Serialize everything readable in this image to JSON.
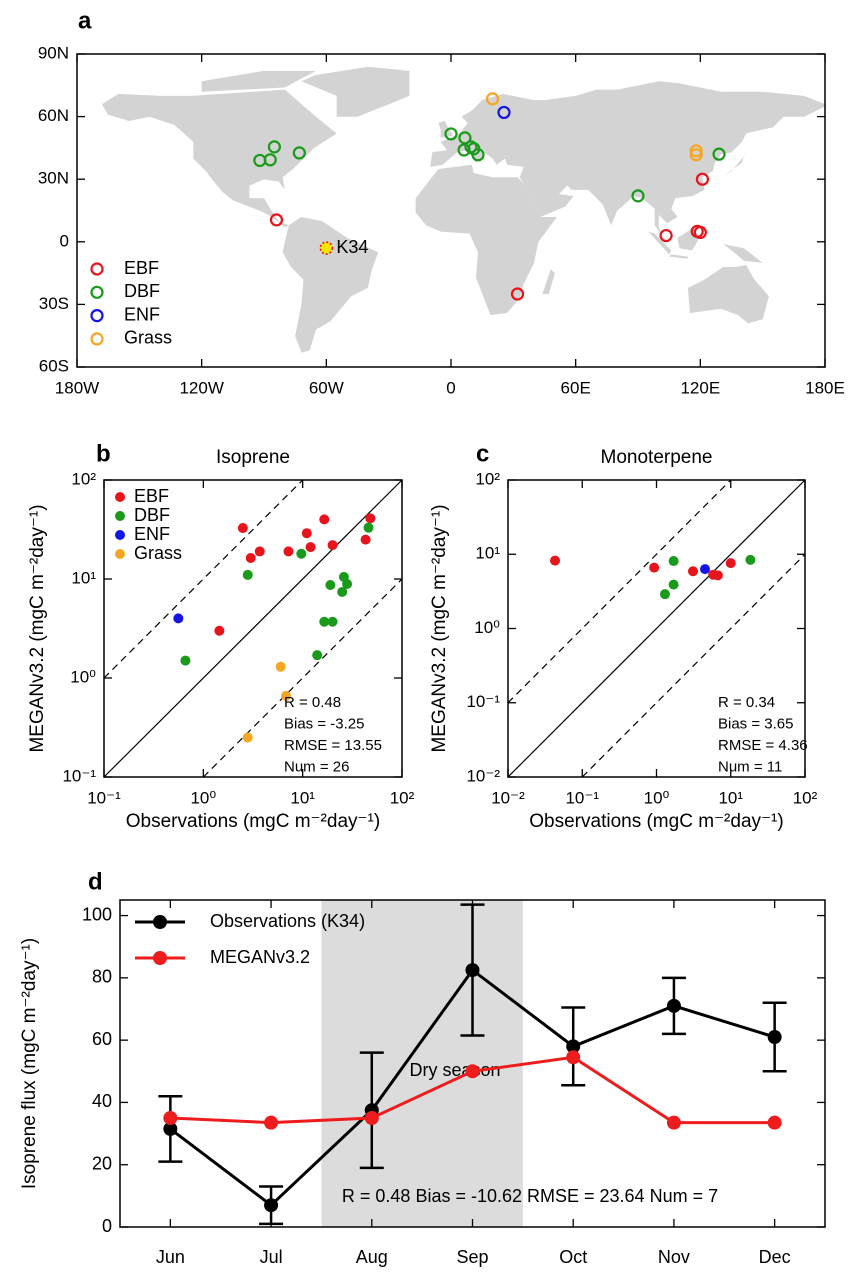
{
  "chart_data": [
    {
      "type": "map",
      "label": "a",
      "xlim": [
        -180,
        180
      ],
      "ylim": [
        -60,
        90
      ],
      "xticks": [
        {
          "value": -180,
          "label": "180W"
        },
        {
          "value": -120,
          "label": "120W"
        },
        {
          "value": -60,
          "label": "60W"
        },
        0,
        {
          "value": 60,
          "label": "60E"
        },
        {
          "value": 120,
          "label": "120E"
        },
        {
          "value": 180,
          "label": "180E"
        }
      ],
      "yticks": [
        {
          "value": 90,
          "label": "90N"
        },
        {
          "value": 60,
          "label": "60N"
        },
        {
          "value": 30,
          "label": "30N"
        },
        0,
        {
          "value": -30,
          "label": "30S"
        },
        {
          "value": -60,
          "label": "60S"
        }
      ],
      "series": [
        {
          "name": "EBF",
          "color": "#e8141c",
          "x": [
            -84,
            103.5,
            118.5,
            120,
            121,
            32
          ],
          "values": [
            10.5,
            3,
            5,
            4.5,
            30,
            -25
          ]
        },
        {
          "name": "DBF",
          "color": "#1a9a1a",
          "x": [
            -92,
            -87,
            -85,
            -73,
            0,
            6.7,
            6.3,
            9.6,
            11,
            13,
            90,
            129
          ],
          "values": [
            39,
            39.3,
            45.5,
            42.6,
            51.7,
            49.8,
            44,
            45.5,
            44.6,
            41.7,
            22,
            42
          ]
        },
        {
          "name": "ENF",
          "color": "#1414e6",
          "x": [
            25.5
          ],
          "values": [
            62
          ]
        },
        {
          "name": "Grass",
          "color": "#f5a623",
          "x": [
            20,
            118,
            118
          ],
          "values": [
            68.5,
            43.6,
            41.7
          ]
        }
      ],
      "annotations": [
        {
          "text": "K34",
          "x": -60,
          "y": -3,
          "color": "#f5e600",
          "edgecolor": "#e8141c"
        }
      ]
    },
    {
      "type": "scatter",
      "label": "b",
      "title": "Isoprene",
      "log": true,
      "legend": "upper left",
      "xlabel": "Observations (mgC m⁻²day⁻¹)",
      "ylabel": "MEGANv3.2 (mgC m⁻²day⁻¹)",
      "xlim": [
        0.1,
        100
      ],
      "ylim": [
        0.1,
        100
      ],
      "xticks": [
        {
          "value": 0.1,
          "label": "10⁻¹"
        },
        {
          "value": 1,
          "label": "10⁰"
        },
        {
          "value": 10,
          "label": "10¹"
        },
        {
          "value": 100,
          "label": "10²"
        }
      ],
      "yticks": [
        {
          "value": 0.1,
          "label": "10⁻¹"
        },
        {
          "value": 1,
          "label": "10⁰"
        },
        {
          "value": 10,
          "label": "10¹"
        },
        {
          "value": 100,
          "label": "10²"
        }
      ],
      "ratio_lines": [
        1,
        10,
        0.1
      ],
      "series": [
        {
          "name": "EBF",
          "color": "#e8141c",
          "x": [
            2.5,
            3.0,
            3.7,
            7.2,
            11,
            12,
            16.5,
            20,
            43,
            48,
            1.45
          ],
          "values": [
            32.7,
            16.3,
            19,
            19,
            29,
            21,
            40,
            22,
            25,
            41,
            3.0
          ]
        },
        {
          "name": "DBF",
          "color": "#1a9a1a",
          "x": [
            2.8,
            9.7,
            19,
            26,
            28,
            25,
            16.5,
            20,
            14,
            46,
            0.66
          ],
          "values": [
            11,
            18,
            8.7,
            10.5,
            8.9,
            7.4,
            3.7,
            3.7,
            1.7,
            33,
            1.5
          ]
        },
        {
          "name": "ENF",
          "color": "#1414e6",
          "x": [
            0.56
          ],
          "values": [
            4.0
          ]
        },
        {
          "name": "Grass",
          "color": "#f5a623",
          "x": [
            6.0,
            6.8,
            2.8
          ],
          "values": [
            1.3,
            0.66,
            0.25
          ]
        }
      ],
      "stats": [
        "R = 0.48",
        "Bias = -3.25",
        "RMSE = 13.55",
        "Num = 26"
      ]
    },
    {
      "type": "scatter",
      "label": "c",
      "title": "Monoterpene",
      "log": true,
      "xlabel": "Observations (mgC m⁻²day⁻¹)",
      "ylabel": "MEGANv3.2 (mgC m⁻²day⁻¹)",
      "xlim": [
        0.01,
        100
      ],
      "ylim": [
        0.01,
        100
      ],
      "xticks": [
        {
          "value": 0.01,
          "label": "10⁻²"
        },
        {
          "value": 0.1,
          "label": "10⁻¹"
        },
        {
          "value": 1,
          "label": "10⁰"
        },
        {
          "value": 10,
          "label": "10¹"
        },
        {
          "value": 100,
          "label": "10²"
        }
      ],
      "yticks": [
        {
          "value": 0.01,
          "label": "10⁻²"
        },
        {
          "value": 0.1,
          "label": "10⁻¹"
        },
        {
          "value": 1,
          "label": "10⁰"
        },
        {
          "value": 10,
          "label": "10¹"
        },
        {
          "value": 100,
          "label": "10²"
        }
      ],
      "ratio_lines": [
        1,
        10,
        0.1
      ],
      "series": [
        {
          "name": "EBF",
          "color": "#e8141c",
          "x": [
            0.043,
            0.93,
            3.1,
            5.8,
            6.7,
            10
          ],
          "values": [
            8.2,
            6.6,
            5.9,
            5.3,
            5.2,
            7.6
          ]
        },
        {
          "name": "DBF",
          "color": "#1a9a1a",
          "x": [
            1.7,
            1.7,
            1.3,
            18.4
          ],
          "values": [
            8.1,
            3.9,
            2.9,
            8.4
          ]
        },
        {
          "name": "ENF",
          "color": "#1414e6",
          "x": [
            4.5
          ],
          "values": [
            6.3
          ]
        }
      ],
      "stats": [
        "R = 0.34",
        "Bias = 3.65",
        "RMSE = 4.36",
        "Num = 11"
      ]
    },
    {
      "type": "line",
      "label": "d",
      "ylabel": "Isoprene flux (mgC m⁻²day⁻¹)",
      "categories": [
        "Jun",
        "Jul",
        "Aug",
        "Sep",
        "Oct",
        "Nov",
        "Dec"
      ],
      "ylim": [
        0,
        105
      ],
      "yticks": [
        0,
        20,
        40,
        60,
        80,
        100
      ],
      "series": [
        {
          "name": "Observations (K34)",
          "color": "#000000",
          "values": [
            31.5,
            7,
            37.5,
            82.5,
            58,
            71,
            61
          ],
          "errors": [
            10.5,
            6,
            18.5,
            21,
            12.5,
            9,
            11
          ]
        },
        {
          "name": "MEGANv3.2",
          "color": "#ee1c1c",
          "values": [
            35,
            33.5,
            35,
            50,
            54.5,
            33.5,
            33.5
          ]
        }
      ],
      "shade_label": "Dry season",
      "annotation": "R = 0.48 Bias = -10.62 RMSE = 23.64 Num = 7"
    }
  ]
}
